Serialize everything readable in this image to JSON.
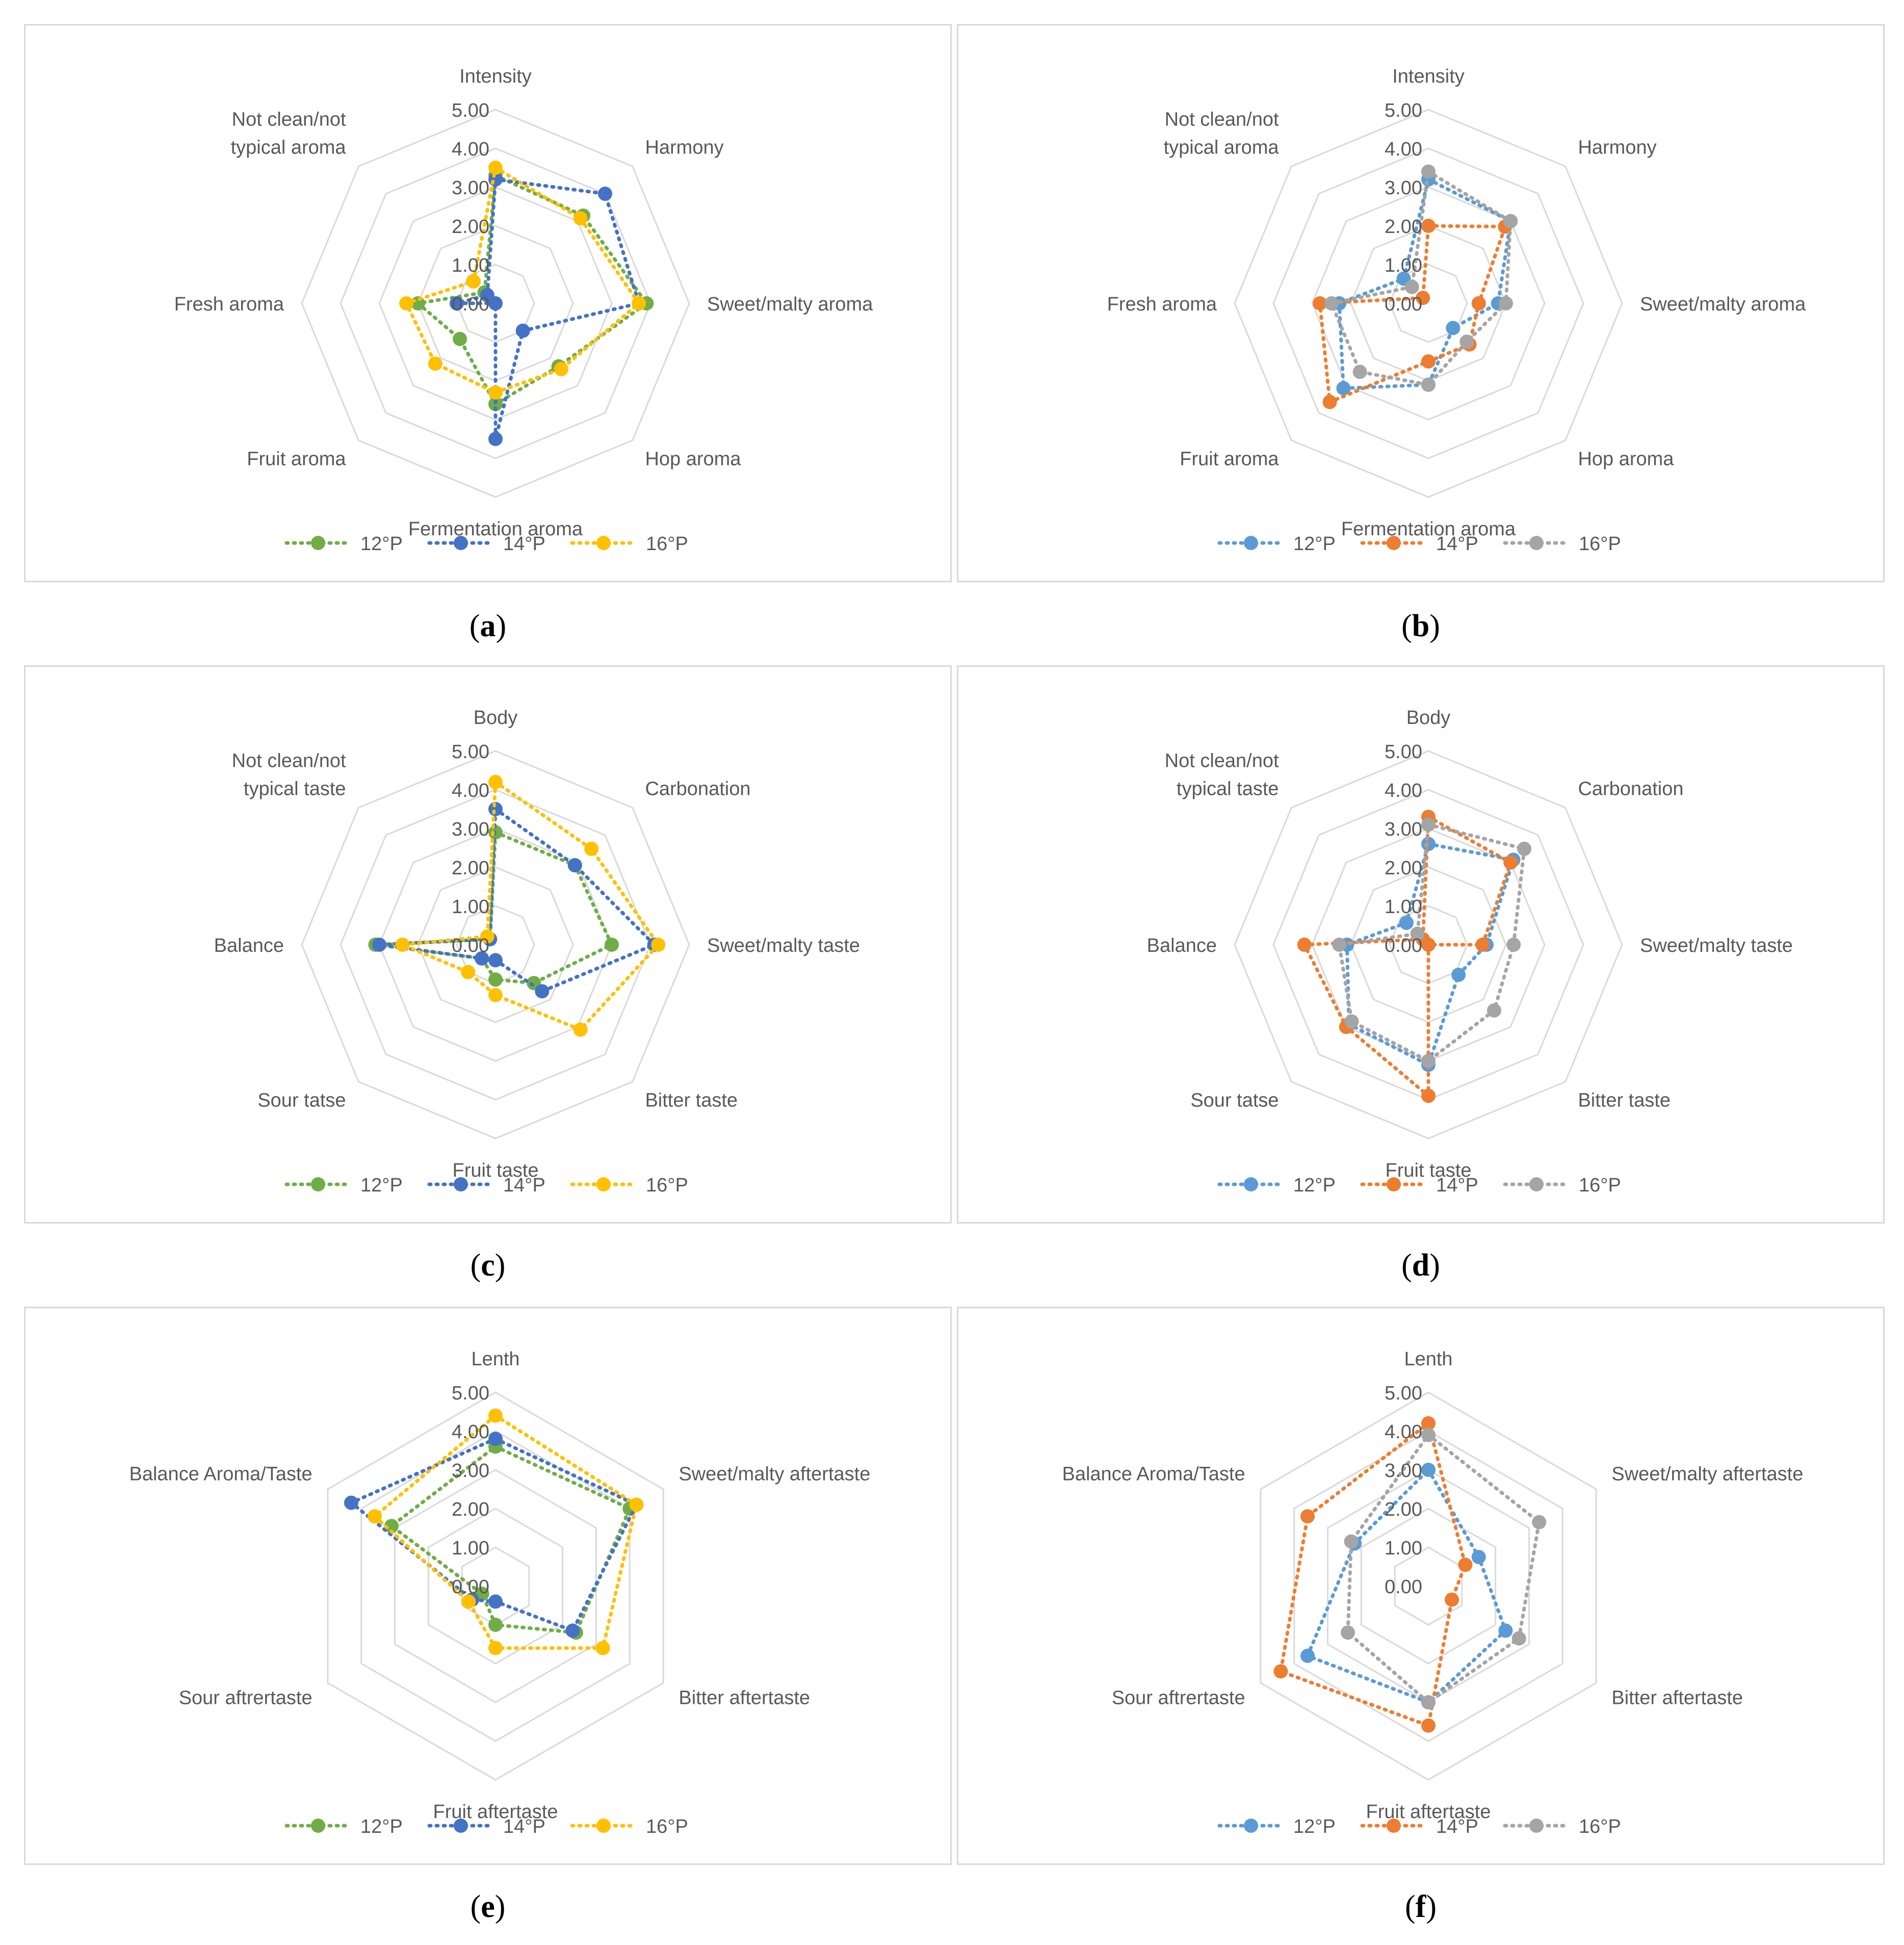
{
  "figure": {
    "panels": [
      {
        "caption": "a",
        "chart_index": 0
      },
      {
        "caption": "b",
        "chart_index": 1
      },
      {
        "caption": "c",
        "chart_index": 2
      },
      {
        "caption": "d",
        "chart_index": 3
      },
      {
        "caption": "e",
        "chart_index": 4
      },
      {
        "caption": "f",
        "chart_index": 5
      }
    ]
  },
  "chart_data": [
    {
      "type": "radar",
      "axes": [
        "Intensity",
        "Harmony",
        "Sweet/malty aroma",
        "Hop aroma",
        "Fermentation aroma",
        "Fruit aroma",
        "Fresh aroma",
        "Not clean/not typical aroma"
      ],
      "tick_labels": [
        "0.00",
        "1.00",
        "2.00",
        "3.00",
        "4.00",
        "5.00"
      ],
      "range": [
        0,
        5
      ],
      "series": [
        {
          "name": "12°P",
          "color": "#70ad47",
          "values": [
            3.3,
            3.2,
            3.9,
            2.3,
            2.6,
            1.3,
            2.0,
            0.4
          ]
        },
        {
          "name": "14°P",
          "color": "#4472c4",
          "values": [
            3.2,
            4.0,
            3.7,
            1.0,
            3.5,
            0.0,
            1.0,
            0.3
          ]
        },
        {
          "name": "16°P",
          "color": "#ffc000",
          "values": [
            3.5,
            3.1,
            3.7,
            2.4,
            2.3,
            2.2,
            2.3,
            0.8
          ]
        }
      ]
    },
    {
      "type": "radar",
      "axes": [
        "Intensity",
        "Harmony",
        "Sweet/malty aroma",
        "Hop aroma",
        "Fermentation aroma",
        "Fruit aroma",
        "Fresh aroma",
        "Not clean/not typical aroma"
      ],
      "tick_labels": [
        "0.00",
        "1.00",
        "2.00",
        "3.00",
        "4.00",
        "5.00"
      ],
      "range": [
        0,
        5
      ],
      "series": [
        {
          "name": "12°P",
          "color": "#5b9bd5",
          "values": [
            3.2,
            3.0,
            1.8,
            0.9,
            2.1,
            3.1,
            2.3,
            0.9
          ]
        },
        {
          "name": "14°P",
          "color": "#ed7d31",
          "values": [
            2.0,
            2.8,
            1.3,
            1.5,
            1.5,
            3.6,
            2.8,
            0.2
          ]
        },
        {
          "name": "16°P",
          "color": "#a5a5a5",
          "values": [
            3.4,
            3.0,
            2.0,
            1.4,
            2.1,
            2.5,
            2.5,
            0.6
          ]
        }
      ]
    },
    {
      "type": "radar",
      "axes": [
        "Body",
        "Carbonation",
        "Sweet/malty taste",
        "Bitter taste",
        "Fruit taste",
        "Sour tatse",
        "Balance",
        "Not clean/not typical taste"
      ],
      "tick_labels": [
        "0.00",
        "1.00",
        "2.00",
        "3.00",
        "4.00",
        "5.00"
      ],
      "range": [
        0,
        5
      ],
      "series": [
        {
          "name": "12°P",
          "color": "#70ad47",
          "values": [
            2.9,
            2.9,
            3.0,
            1.4,
            0.9,
            0.5,
            3.1,
            0.2
          ]
        },
        {
          "name": "14°P",
          "color": "#4472c4",
          "values": [
            3.5,
            2.9,
            4.1,
            1.7,
            0.4,
            0.5,
            3.0,
            0.2
          ]
        },
        {
          "name": "16°P",
          "color": "#ffc000",
          "values": [
            4.2,
            3.5,
            4.2,
            3.1,
            1.3,
            1.0,
            2.4,
            0.3
          ]
        }
      ]
    },
    {
      "type": "radar",
      "axes": [
        "Body",
        "Carbonation",
        "Sweet/malty taste",
        "Bitter taste",
        "Fruit taste",
        "Sour tatse",
        "Balance",
        "Not clean/not typical taste"
      ],
      "tick_labels": [
        "0.00",
        "1.00",
        "2.00",
        "3.00",
        "4.00",
        "5.00"
      ],
      "range": [
        0,
        5
      ],
      "series": [
        {
          "name": "12°P",
          "color": "#5b9bd5",
          "values": [
            2.6,
            3.1,
            1.5,
            1.1,
            3.1,
            2.9,
            2.1,
            0.8
          ]
        },
        {
          "name": "14°P",
          "color": "#ed7d31",
          "values": [
            3.3,
            3.0,
            1.4,
            0.0,
            3.9,
            3.0,
            3.2,
            0.2
          ]
        },
        {
          "name": "16°P",
          "color": "#a5a5a5",
          "values": [
            3.1,
            3.5,
            2.2,
            2.4,
            3.0,
            2.8,
            2.3,
            0.4
          ]
        }
      ]
    },
    {
      "type": "radar",
      "axes": [
        "Lenth",
        "Sweet/malty aftertaste",
        "Bitter aftertaste",
        "Fruit aftertaste",
        "Sour aftrertaste",
        "Balance Aroma/Taste"
      ],
      "tick_labels": [
        "0.00",
        "1.00",
        "2.00",
        "3.00",
        "4.00",
        "5.00"
      ],
      "range": [
        0,
        5
      ],
      "series": [
        {
          "name": "12°P",
          "color": "#70ad47",
          "values": [
            3.6,
            4.0,
            2.4,
            1.0,
            0.4,
            3.1
          ]
        },
        {
          "name": "14°P",
          "color": "#4472c4",
          "values": [
            3.8,
            4.2,
            2.3,
            0.4,
            0.7,
            4.3
          ]
        },
        {
          "name": "16°P",
          "color": "#ffc000",
          "values": [
            4.4,
            4.2,
            3.2,
            1.6,
            0.8,
            3.6
          ]
        }
      ]
    },
    {
      "type": "radar",
      "axes": [
        "Lenth",
        "Sweet/malty aftertaste",
        "Bitter aftertaste",
        "Fruit aftertaste",
        "Sour aftrertaste",
        "Balance Aroma/Taste"
      ],
      "tick_labels": [
        "0.00",
        "1.00",
        "2.00",
        "3.00",
        "4.00",
        "5.00"
      ],
      "range": [
        0,
        5
      ],
      "series": [
        {
          "name": "12°P",
          "color": "#5b9bd5",
          "values": [
            3.0,
            1.5,
            2.3,
            3.0,
            3.6,
            2.2
          ]
        },
        {
          "name": "14°P",
          "color": "#ed7d31",
          "values": [
            4.2,
            1.1,
            0.7,
            3.6,
            4.4,
            3.6
          ]
        },
        {
          "name": "16°P",
          "color": "#a5a5a5",
          "values": [
            3.9,
            3.3,
            2.7,
            3.0,
            2.4,
            2.3
          ]
        }
      ]
    }
  ]
}
